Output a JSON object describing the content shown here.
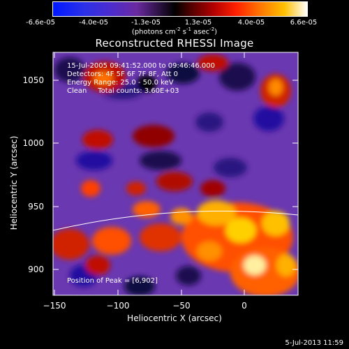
{
  "colorbar": {
    "ticks": [
      "-6.6e-05",
      "-4.0e-05",
      "-1.3e-05",
      "1.3e-05",
      "4.0e-05",
      "6.6e-05"
    ],
    "units_main": "(photons cm",
    "units_sup1": "-2",
    "units_mid": " s",
    "units_sup2": "-1",
    "units_tail": " asec",
    "units_sup3": "-2",
    "units_end": ")",
    "range": [
      -6.6e-05,
      6.6e-05
    ]
  },
  "title": "Reconstructed RHESSI Image",
  "info": {
    "time": "15-Jul-2005 09:41:52.000 to 09:46:46.000",
    "detectors": "Detectors: 4F 5F 6F 7F 8F, Att 0",
    "energy": "Energy Range: 25.0 - 50.0 keV",
    "clean": "Clean     Total counts: 3.60E+03"
  },
  "peak_label": "Position of Peak = [6,902]",
  "axes": {
    "xlabel": "Heliocentric X (arcsec)",
    "ylabel": "Heliocentric Y (arcsec)",
    "xticks": [
      "−150",
      "−100",
      "−50",
      "0"
    ],
    "yticks": [
      "1050",
      "1000",
      "950",
      "900"
    ],
    "xrange": [
      -153,
      40
    ],
    "yrange": [
      878,
      1070
    ]
  },
  "colors": {
    "background": "#000000",
    "limb": "#ffffff",
    "cmap": [
      "#0000ff",
      "#3a1ab0",
      "#5a32c8",
      "#7a3a9a",
      "#000000",
      "#a00000",
      "#ff2000",
      "#ff8000",
      "#ffd000",
      "#ffffff"
    ]
  },
  "date_stamp": "5-Jul-2013 11:59"
}
